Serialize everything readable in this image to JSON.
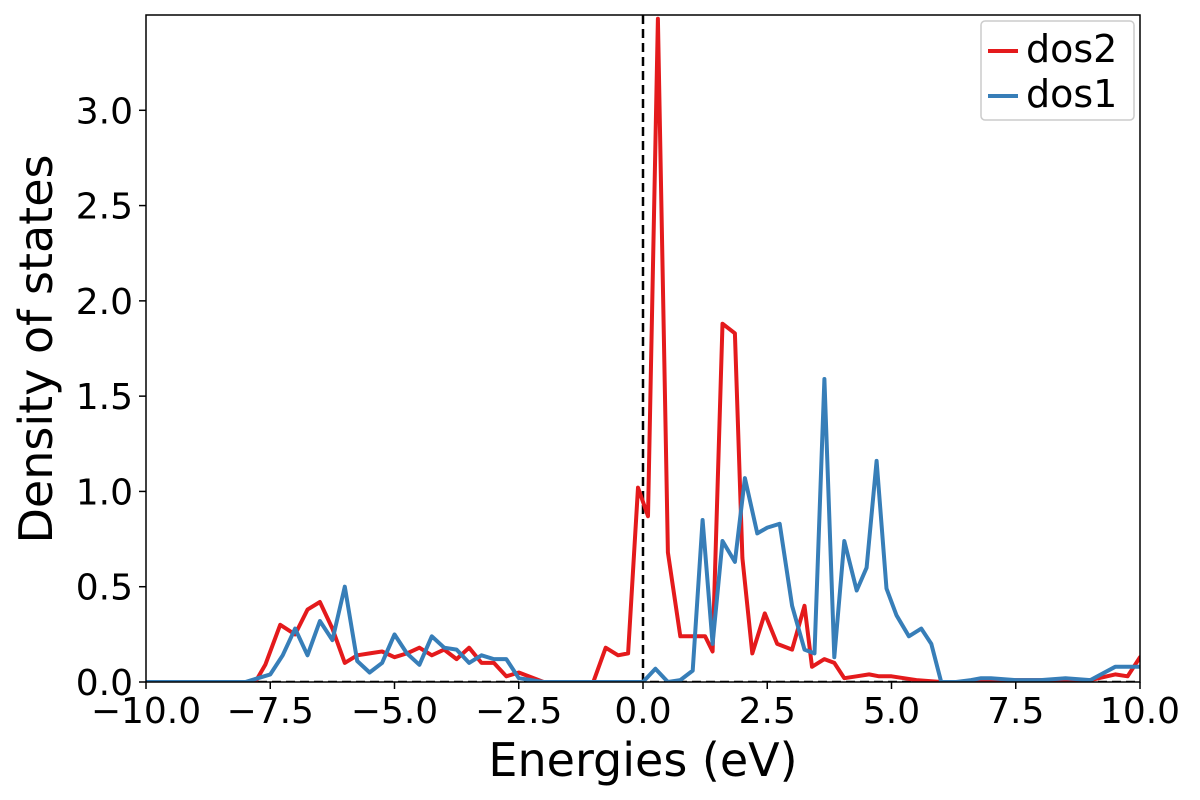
{
  "chart_data": {
    "type": "line",
    "title": "",
    "xlabel": "Energies (eV)",
    "ylabel": "Density of states",
    "xlim": [
      -10,
      10
    ],
    "ylim": [
      0,
      3.5
    ],
    "xticks": [
      -10,
      -7.5,
      -5,
      -2.5,
      0,
      2.5,
      5,
      7.5,
      10
    ],
    "xtick_labels": [
      "−10.0",
      "−7.5",
      "−5.0",
      "−2.5",
      "0.0",
      "2.5",
      "5.0",
      "7.5",
      "10.0"
    ],
    "yticks": [
      0,
      0.5,
      1.0,
      1.5,
      2.0,
      2.5,
      3.0
    ],
    "ytick_labels": [
      "0.0",
      "0.5",
      "1.0",
      "1.5",
      "2.0",
      "2.5",
      "3.0"
    ],
    "reference_lines": [
      {
        "orientation": "vertical",
        "at": 0,
        "style": "dashed",
        "color": "#000000"
      },
      {
        "orientation": "horizontal",
        "at": 0,
        "style": "dashed",
        "color": "#000000"
      }
    ],
    "legend": {
      "position": "top-right",
      "entries": [
        "dos2",
        "dos1"
      ]
    },
    "series": [
      {
        "name": "dos2",
        "color": "#e41a1c",
        "x": [
          -10,
          -9,
          -8,
          -7.8,
          -7.6,
          -7.3,
          -7.0,
          -6.75,
          -6.5,
          -6.25,
          -6.0,
          -5.75,
          -5.5,
          -5.25,
          -5.0,
          -4.75,
          -4.5,
          -4.25,
          -4.0,
          -3.75,
          -3.5,
          -3.25,
          -3.0,
          -2.75,
          -2.5,
          -2.0,
          -1.5,
          -1.25,
          -1.0,
          -0.75,
          -0.5,
          -0.3,
          -0.1,
          0.1,
          0.3,
          0.5,
          0.75,
          1.0,
          1.25,
          1.4,
          1.6,
          1.85,
          2.0,
          2.2,
          2.45,
          2.7,
          3.0,
          3.25,
          3.4,
          3.65,
          3.85,
          4.05,
          4.3,
          4.55,
          4.75,
          5.0,
          5.25,
          5.5,
          6.0,
          6.5,
          7.0,
          7.5,
          8.0,
          8.5,
          9.0,
          9.5,
          9.75,
          10.0
        ],
        "values": [
          0,
          0,
          0,
          0,
          0.09,
          0.3,
          0.25,
          0.38,
          0.42,
          0.28,
          0.1,
          0.14,
          0.15,
          0.16,
          0.13,
          0.15,
          0.18,
          0.14,
          0.17,
          0.12,
          0.18,
          0.1,
          0.1,
          0.03,
          0.05,
          0,
          0,
          0,
          0,
          0.18,
          0.14,
          0.15,
          1.02,
          0.87,
          3.48,
          0.68,
          0.24,
          0.24,
          0.24,
          0.16,
          1.88,
          1.83,
          0.65,
          0.15,
          0.36,
          0.2,
          0.17,
          0.4,
          0.08,
          0.12,
          0.1,
          0.02,
          0.03,
          0.04,
          0.03,
          0.03,
          0.02,
          0.01,
          0,
          0,
          0.01,
          0.01,
          0.01,
          0.01,
          0.01,
          0.04,
          0.03,
          0.13
        ]
      },
      {
        "name": "dos1",
        "color": "#377eb8",
        "x": [
          -10,
          -9,
          -8,
          -7.5,
          -7.25,
          -7.0,
          -6.75,
          -6.5,
          -6.25,
          -6.0,
          -5.75,
          -5.5,
          -5.25,
          -5.0,
          -4.75,
          -4.5,
          -4.25,
          -4.0,
          -3.75,
          -3.5,
          -3.25,
          -3.0,
          -2.75,
          -2.5,
          -2.0,
          -1.0,
          -0.5,
          0,
          0.25,
          0.5,
          0.75,
          1.0,
          1.2,
          1.4,
          1.6,
          1.85,
          2.05,
          2.3,
          2.5,
          2.75,
          3.0,
          3.25,
          3.45,
          3.65,
          3.85,
          4.05,
          4.3,
          4.5,
          4.7,
          4.9,
          5.1,
          5.35,
          5.6,
          5.8,
          6.0,
          6.3,
          6.6,
          6.8,
          7.0,
          7.5,
          8.0,
          8.5,
          9.0,
          9.5,
          10.0
        ],
        "values": [
          0,
          0,
          0,
          0.04,
          0.14,
          0.28,
          0.14,
          0.32,
          0.22,
          0.5,
          0.11,
          0.05,
          0.1,
          0.25,
          0.15,
          0.09,
          0.24,
          0.18,
          0.17,
          0.1,
          0.14,
          0.12,
          0.12,
          0.02,
          0,
          0,
          0,
          0,
          0.07,
          0,
          0.01,
          0.06,
          0.85,
          0.2,
          0.74,
          0.63,
          1.07,
          0.78,
          0.81,
          0.83,
          0.4,
          0.17,
          0.15,
          1.59,
          0.13,
          0.74,
          0.48,
          0.6,
          1.16,
          0.49,
          0.35,
          0.24,
          0.28,
          0.2,
          0,
          0,
          0.01,
          0.02,
          0.02,
          0.01,
          0.01,
          0.02,
          0.01,
          0.08,
          0.08
        ]
      }
    ]
  }
}
